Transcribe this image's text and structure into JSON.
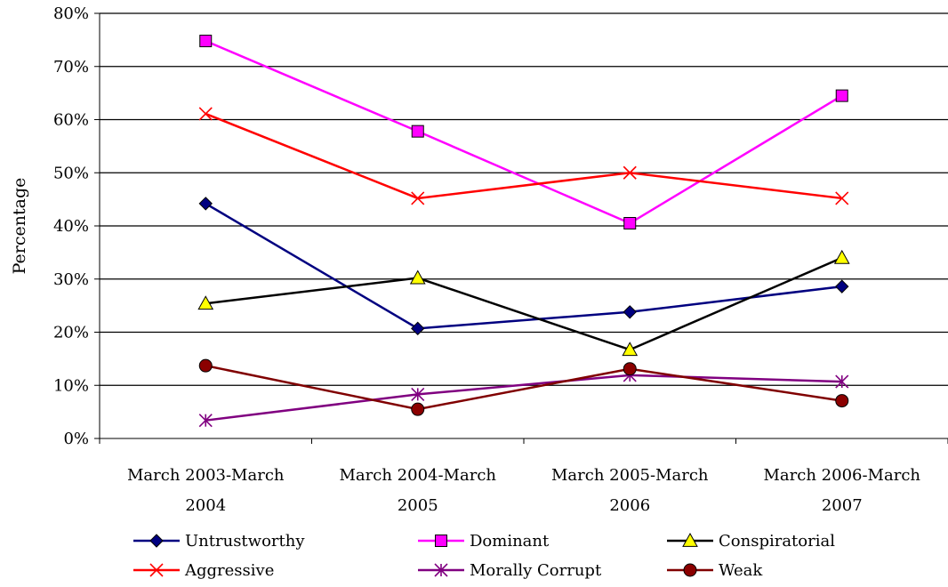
{
  "chart_data": {
    "type": "line",
    "title": "",
    "xlabel": "",
    "ylabel": "Percentage",
    "ylim": [
      0,
      80
    ],
    "y_ticks": [
      "0%",
      "10%",
      "20%",
      "30%",
      "40%",
      "50%",
      "60%",
      "70%",
      "80%"
    ],
    "y_tick_values": [
      0,
      10,
      20,
      30,
      40,
      50,
      60,
      70,
      80
    ],
    "grid": true,
    "legend_position": "bottom",
    "categories": [
      [
        "March 2003-March",
        "2004"
      ],
      [
        "March 2004-March",
        "2005"
      ],
      [
        "March 2005-March",
        "2006"
      ],
      [
        "March 2006-March",
        "2007"
      ]
    ],
    "series": [
      {
        "name": "Untrustworthy",
        "values": [
          44.2,
          20.7,
          23.8,
          28.6
        ],
        "color": "#000080",
        "marker": "diamond"
      },
      {
        "name": "Dominant",
        "values": [
          74.8,
          57.8,
          40.5,
          64.5
        ],
        "color": "#FF00FF",
        "marker": "square"
      },
      {
        "name": "Conspiratorial",
        "values": [
          25.4,
          30.2,
          16.7,
          34.0
        ],
        "color": "#000000",
        "marker": "triangle",
        "marker_fill": "#FFFF00"
      },
      {
        "name": "Aggressive",
        "values": [
          61.1,
          45.2,
          50.0,
          45.2
        ],
        "color": "#FF0000",
        "marker": "x"
      },
      {
        "name": "Morally Corrupt",
        "values": [
          3.4,
          8.3,
          11.9,
          10.7
        ],
        "color": "#800080",
        "marker": "star"
      },
      {
        "name": "Weak",
        "values": [
          13.7,
          5.5,
          13.1,
          7.1
        ],
        "color": "#800000",
        "marker": "circle",
        "marker_fill": "#8B0000"
      }
    ]
  }
}
